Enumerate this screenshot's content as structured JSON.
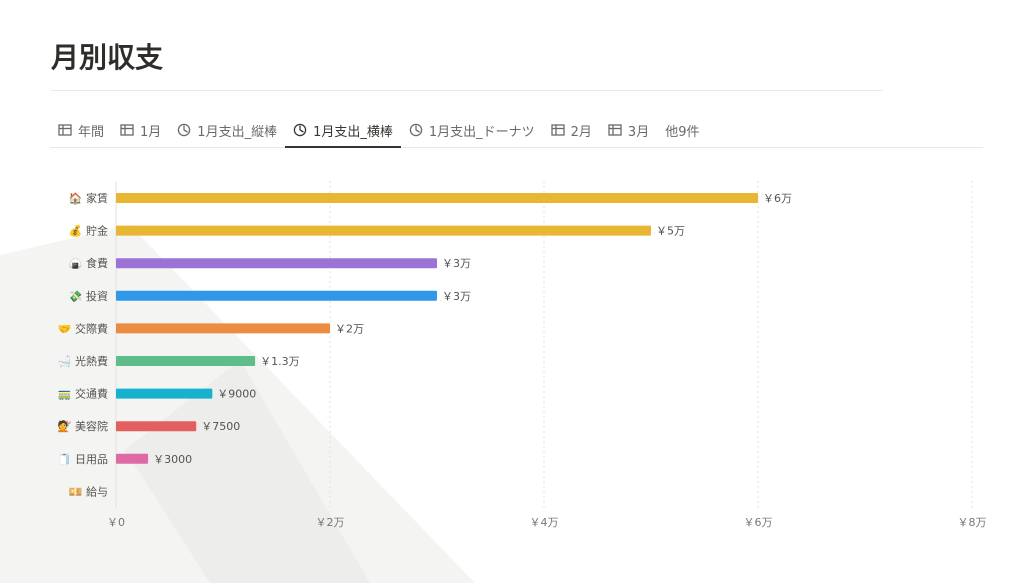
{
  "page": {
    "title": "月別収支"
  },
  "tabs": [
    {
      "label": "年間",
      "icon": "table-icon",
      "active": false
    },
    {
      "label": "1月",
      "icon": "table-icon",
      "active": false
    },
    {
      "label": "1月支出_縦棒",
      "icon": "chart-icon",
      "active": false
    },
    {
      "label": "1月支出_横棒",
      "icon": "chart-icon",
      "active": true
    },
    {
      "label": "1月支出_ドーナツ",
      "icon": "chart-icon",
      "active": false
    },
    {
      "label": "2月",
      "icon": "table-icon",
      "active": false
    },
    {
      "label": "3月",
      "icon": "table-icon",
      "active": false
    },
    {
      "label": "他9件",
      "icon": "",
      "active": false
    }
  ],
  "chart_data": {
    "type": "bar",
    "orientation": "horizontal",
    "grid": true,
    "xlim": [
      0,
      80000
    ],
    "x_ticks": [
      {
        "value": 0,
        "label": "￥0"
      },
      {
        "value": 20000,
        "label": "￥2万"
      },
      {
        "value": 40000,
        "label": "￥4万"
      },
      {
        "value": 60000,
        "label": "￥6万"
      },
      {
        "value": 80000,
        "label": "￥8万"
      }
    ],
    "categories": [
      {
        "name": "家賃",
        "emoji": "🏠",
        "value": 60000,
        "value_label": "￥6万",
        "color": "#e8b632"
      },
      {
        "name": "貯金",
        "emoji": "💰",
        "value": 50000,
        "value_label": "￥5万",
        "color": "#e8b632"
      },
      {
        "name": "食費",
        "emoji": "🍙",
        "value": 30000,
        "value_label": "￥3万",
        "color": "#9b72d6"
      },
      {
        "name": "投資",
        "emoji": "💸",
        "value": 30000,
        "value_label": "￥3万",
        "color": "#3197e8"
      },
      {
        "name": "交際費",
        "emoji": "🤝",
        "value": 20000,
        "value_label": "￥2万",
        "color": "#ec8c43"
      },
      {
        "name": "光熱費",
        "emoji": "🛁",
        "value": 13000,
        "value_label": "￥1.3万",
        "color": "#5ebd8a"
      },
      {
        "name": "交通費",
        "emoji": "🚃",
        "value": 9000,
        "value_label": "￥9000",
        "color": "#15b1cf"
      },
      {
        "name": "美容院",
        "emoji": "💇",
        "value": 7500,
        "value_label": "￥7500",
        "color": "#e35f5f"
      },
      {
        "name": "日用品",
        "emoji": "🧻",
        "value": 3000,
        "value_label": "￥3000",
        "color": "#dd6aa5"
      },
      {
        "name": "給与",
        "emoji": "💴",
        "value": 0,
        "value_label": "",
        "color": "#e8b632"
      }
    ]
  }
}
